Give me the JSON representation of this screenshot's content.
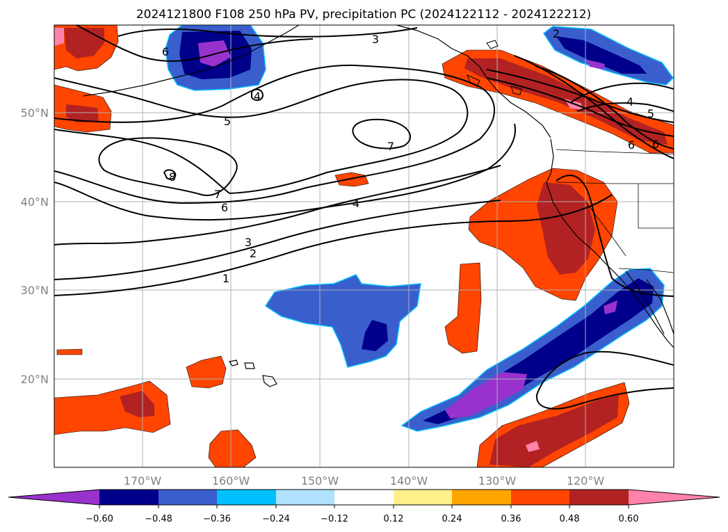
{
  "title": "2024121800 F108 250 hPa PV, precipitation PC (2024122112 - 2024122212)",
  "map": {
    "lon_labels": [
      "170°W",
      "160°W",
      "150°W",
      "140°W",
      "130°W",
      "120°W"
    ],
    "lat_labels": [
      "50°N",
      "40°N",
      "30°N",
      "20°N"
    ],
    "contour_labels": [
      "1",
      "2",
      "3",
      "3",
      "4",
      "4",
      "5",
      "5",
      "6",
      "6",
      "6",
      "7",
      "7",
      "8",
      "2",
      "4",
      "6"
    ]
  },
  "colorbar": {
    "tick_labels": [
      "−0.60",
      "−0.48",
      "−0.36",
      "−0.24",
      "−0.12",
      "0.12",
      "0.24",
      "0.36",
      "0.48",
      "0.60"
    ],
    "colors": [
      "#9932cc",
      "#00008b",
      "#3a5fcd",
      "#00bfff",
      "#b0e2ff",
      "#ffffff",
      "#fff08c",
      "#ffa500",
      "#ff4500",
      "#b22222",
      "#ff82ab"
    ]
  }
}
